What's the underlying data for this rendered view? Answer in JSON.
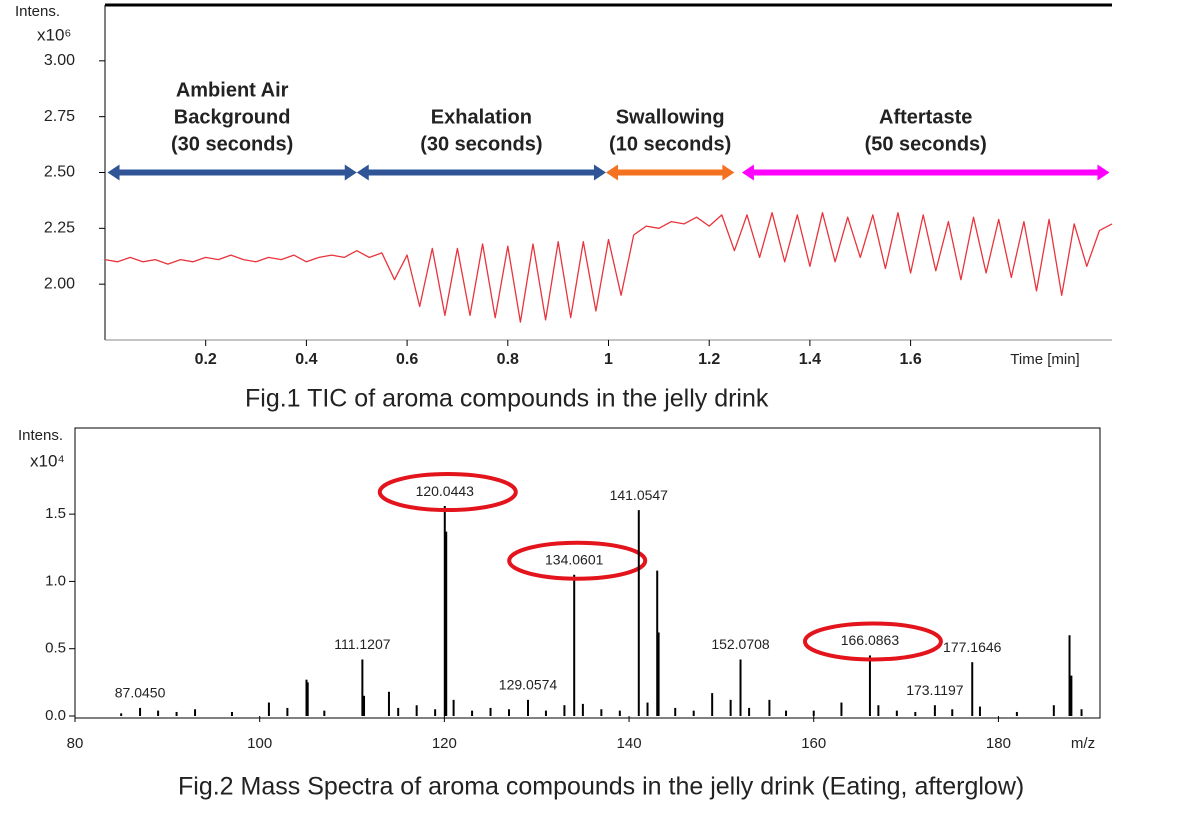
{
  "chart_data": [
    {
      "type": "line",
      "y_label": "Intens.",
      "y_unit": "x10⁶",
      "x_label": "Time [min]",
      "caption": "Fig.1 TIC of aroma compounds in the jelly drink",
      "xlim": [
        0,
        2.0
      ],
      "ylim": [
        1.75,
        3.25
      ],
      "xticks": [
        0.2,
        0.4,
        0.6,
        0.8,
        1.0,
        1.2,
        1.4,
        1.6
      ],
      "yticks": [
        {
          "value": 2.0,
          "label": "2.00"
        },
        {
          "value": 2.25,
          "label": "2.25"
        },
        {
          "value": 2.5,
          "label": "2.50"
        },
        {
          "value": 2.75,
          "label": "2.75"
        },
        {
          "value": 3.0,
          "label": "3.00"
        }
      ],
      "x": [
        0.0,
        0.025,
        0.05,
        0.075,
        0.1,
        0.125,
        0.15,
        0.175,
        0.2,
        0.225,
        0.25,
        0.275,
        0.3,
        0.325,
        0.35,
        0.375,
        0.4,
        0.425,
        0.45,
        0.475,
        0.5,
        0.525,
        0.55,
        0.575,
        0.6,
        0.625,
        0.65,
        0.675,
        0.7,
        0.725,
        0.75,
        0.775,
        0.8,
        0.825,
        0.85,
        0.875,
        0.9,
        0.925,
        0.95,
        0.975,
        1.0,
        1.025,
        1.05,
        1.075,
        1.1,
        1.125,
        1.15,
        1.175,
        1.2,
        1.225,
        1.25,
        1.275,
        1.3,
        1.325,
        1.35,
        1.375,
        1.4,
        1.425,
        1.45,
        1.475,
        1.5,
        1.525,
        1.55,
        1.575,
        1.6,
        1.625,
        1.65,
        1.675,
        1.7,
        1.725,
        1.75,
        1.775,
        1.8,
        1.825,
        1.85,
        1.875,
        1.9,
        1.925,
        1.95,
        1.975,
        2.0
      ],
      "series": [
        {
          "color": "#e8343c",
          "values": [
            2.11,
            2.1,
            2.12,
            2.1,
            2.11,
            2.09,
            2.11,
            2.1,
            2.12,
            2.11,
            2.13,
            2.11,
            2.1,
            2.12,
            2.11,
            2.13,
            2.1,
            2.12,
            2.13,
            2.12,
            2.15,
            2.12,
            2.14,
            2.02,
            2.13,
            1.9,
            2.16,
            1.86,
            2.16,
            1.86,
            2.18,
            1.85,
            2.17,
            1.83,
            2.18,
            1.84,
            2.19,
            1.85,
            2.19,
            1.88,
            2.2,
            1.95,
            2.22,
            2.26,
            2.25,
            2.28,
            2.27,
            2.3,
            2.26,
            2.31,
            2.15,
            2.31,
            2.12,
            2.32,
            2.1,
            2.31,
            2.08,
            2.32,
            2.1,
            2.3,
            2.12,
            2.31,
            2.07,
            2.32,
            2.05,
            2.31,
            2.06,
            2.28,
            2.02,
            2.3,
            2.05,
            2.29,
            2.03,
            2.28,
            1.97,
            2.29,
            1.95,
            2.27,
            2.08,
            2.24,
            2.27
          ]
        }
      ],
      "annotations": [
        {
          "lines": [
            "Ambient Air",
            "Background",
            "(30 seconds)"
          ],
          "x": [
            0.005,
            0.5
          ],
          "y": 2.5,
          "color": "#2f5597"
        },
        {
          "lines": [
            "Exhalation",
            "(30 seconds)"
          ],
          "x": [
            0.5,
            0.995
          ],
          "y": 2.5,
          "color": "#2f5597"
        },
        {
          "lines": [
            "Swallowing",
            "(10 seconds)"
          ],
          "x": [
            0.995,
            1.25
          ],
          "y": 2.5,
          "color": "#f4711f"
        },
        {
          "lines": [
            "Aftertaste",
            "(50 seconds)"
          ],
          "x": [
            1.265,
            1.995
          ],
          "y": 2.5,
          "color": "#ff00ff"
        }
      ]
    },
    {
      "type": "stem",
      "y_label": "Intens.",
      "y_unit": "x10⁴",
      "x_label": "m/z",
      "caption": "Fig.2 Mass Spectra of aroma compounds in the jelly drink (Eating, afterglow)",
      "xlim": [
        80,
        191
      ],
      "ylim": [
        0,
        2.14
      ],
      "xticks": [
        80,
        100,
        120,
        140,
        160,
        180
      ],
      "yticks": [
        {
          "value": 0,
          "label": "0.0"
        },
        {
          "value": 0.5,
          "label": "0.5"
        },
        {
          "value": 1.0,
          "label": "1.0"
        },
        {
          "value": 1.5,
          "label": "1.5"
        }
      ],
      "color": "#000000",
      "highlight_color": "#e3141b",
      "x": [
        85.0,
        87.045,
        89.0,
        91.0,
        93.0,
        97.0,
        101.0,
        103.0,
        105.07,
        105.2,
        107.0,
        111.1207,
        111.3,
        114.0,
        115.0,
        117.0,
        119.0,
        120.0443,
        120.2,
        121.0,
        123.0,
        125.0,
        127.0,
        129.0574,
        131.0,
        133.0,
        134.0601,
        135.0,
        137.0,
        139.0,
        141.0547,
        142.0,
        143.05,
        143.2,
        145.0,
        147.0,
        149.0,
        151.0,
        152.0708,
        153.0,
        155.2,
        157.0,
        160.0,
        163.0,
        166.0863,
        167.0,
        169.0,
        171.0,
        173.1197,
        175.0,
        177.1646,
        178.0,
        182.0,
        186.0,
        187.7,
        187.9,
        189.0
      ],
      "values": [
        0.02,
        0.06,
        0.04,
        0.03,
        0.05,
        0.03,
        0.1,
        0.06,
        0.27,
        0.25,
        0.04,
        0.42,
        0.15,
        0.18,
        0.06,
        0.08,
        0.05,
        1.56,
        1.37,
        0.12,
        0.04,
        0.06,
        0.05,
        0.12,
        0.04,
        0.08,
        1.05,
        0.09,
        0.05,
        0.04,
        1.53,
        0.1,
        1.08,
        0.62,
        0.06,
        0.04,
        0.17,
        0.12,
        0.42,
        0.06,
        0.12,
        0.04,
        0.04,
        0.1,
        0.45,
        0.08,
        0.04,
        0.03,
        0.08,
        0.05,
        0.4,
        0.07,
        0.03,
        0.08,
        0.6,
        0.3,
        0.05
      ],
      "peak_labels": [
        null,
        "87.0450",
        null,
        null,
        null,
        null,
        null,
        null,
        null,
        null,
        null,
        "111.1207",
        null,
        null,
        null,
        null,
        null,
        "120.0443",
        null,
        null,
        null,
        null,
        null,
        "129.0574",
        null,
        null,
        "134.0601",
        null,
        null,
        null,
        "141.0547",
        null,
        null,
        null,
        null,
        null,
        null,
        null,
        "152.0708",
        null,
        null,
        null,
        null,
        null,
        "166.0863",
        null,
        null,
        null,
        "173.1197",
        null,
        "177.1646",
        null,
        null,
        null,
        null,
        null,
        null
      ],
      "circled": [
        false,
        false,
        false,
        false,
        false,
        false,
        false,
        false,
        false,
        false,
        false,
        false,
        false,
        false,
        false,
        false,
        false,
        true,
        false,
        false,
        false,
        false,
        false,
        false,
        false,
        false,
        true,
        false,
        false,
        false,
        false,
        false,
        false,
        false,
        false,
        false,
        false,
        false,
        false,
        false,
        false,
        false,
        false,
        false,
        true,
        false,
        false,
        false,
        false,
        false,
        false,
        false,
        false,
        false,
        false,
        false,
        false
      ]
    }
  ]
}
